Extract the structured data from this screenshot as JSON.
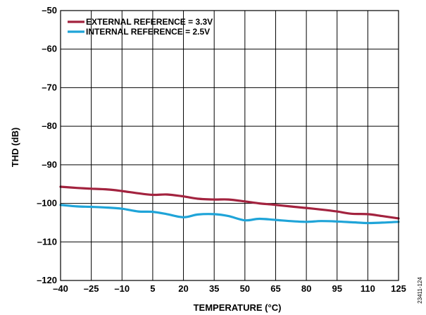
{
  "chart_data": {
    "type": "line",
    "xlabel": "TEMPERATURE (°C)",
    "ylabel": "THD (dB)",
    "xlim": [
      -40,
      125
    ],
    "ylim": [
      -120,
      -50
    ],
    "xticks": [
      -40,
      -25,
      -10,
      5,
      20,
      35,
      50,
      65,
      80,
      95,
      110,
      125
    ],
    "yticks": [
      -50,
      -60,
      -70,
      -80,
      -90,
      -100,
      -110,
      -120
    ],
    "xtick_labels": [
      "–40",
      "–25",
      "–10",
      "5",
      "20",
      "35",
      "50",
      "65",
      "80",
      "95",
      "110",
      "125"
    ],
    "ytick_labels": [
      "–50",
      "–60",
      "–70",
      "–80",
      "–90",
      "–100",
      "–110",
      "–120"
    ],
    "grid": true,
    "legend_position": "top-left",
    "series": [
      {
        "name": "EXTERNAL REFERENCE = 3.3V",
        "color": "#a3233f",
        "x": [
          -40,
          -32,
          -25,
          -17,
          -10,
          -2,
          5,
          12,
          20,
          27,
          35,
          42,
          50,
          57,
          65,
          72,
          80,
          87,
          95,
          102,
          110,
          117,
          125
        ],
        "y": [
          -95.7,
          -96.0,
          -96.2,
          -96.4,
          -96.8,
          -97.4,
          -97.8,
          -97.7,
          -98.2,
          -98.8,
          -99.0,
          -99.0,
          -99.5,
          -100.0,
          -100.4,
          -100.8,
          -101.2,
          -101.6,
          -102.1,
          -102.7,
          -102.8,
          -103.3,
          -103.9
        ]
      },
      {
        "name": "INTERNAL REFERENCE = 2.5V",
        "color": "#1fa4d8",
        "x": [
          -40,
          -32,
          -25,
          -17,
          -10,
          -2,
          5,
          12,
          20,
          27,
          35,
          42,
          50,
          57,
          65,
          72,
          80,
          87,
          95,
          102,
          110,
          117,
          125
        ],
        "y": [
          -100.4,
          -100.8,
          -100.9,
          -101.1,
          -101.4,
          -102.1,
          -102.2,
          -102.8,
          -103.6,
          -102.9,
          -102.8,
          -103.3,
          -104.4,
          -104.0,
          -104.3,
          -104.6,
          -104.8,
          -104.6,
          -104.7,
          -104.9,
          -105.1,
          -105.0,
          -104.8
        ]
      }
    ]
  },
  "figure_id": "23411-124"
}
